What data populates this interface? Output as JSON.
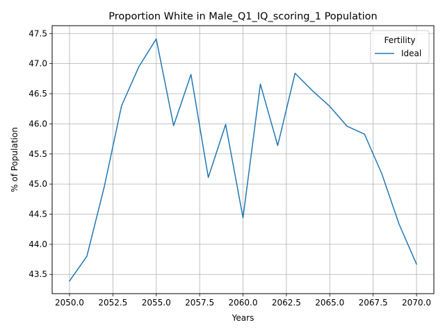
{
  "chart_data": {
    "type": "line",
    "title": "Proportion White in Male_Q1_IQ_scoring_1 Population",
    "xlabel": "Years",
    "ylabel": "% of Population",
    "xlim": [
      2049.0,
      2071.0
    ],
    "ylim": [
      43.18,
      47.63
    ],
    "x_ticks": [
      2050.0,
      2052.5,
      2055.0,
      2057.5,
      2060.0,
      2062.5,
      2065.0,
      2067.5,
      2070.0
    ],
    "x_tick_labels": [
      "2050.0",
      "2052.5",
      "2055.0",
      "2057.5",
      "2060.0",
      "2062.5",
      "2065.0",
      "2067.5",
      "2070.0"
    ],
    "y_ticks": [
      43.5,
      44.0,
      44.5,
      45.0,
      45.5,
      46.0,
      46.5,
      47.0,
      47.5
    ],
    "y_tick_labels": [
      "43.5",
      "44.0",
      "44.5",
      "45.0",
      "45.5",
      "46.0",
      "46.5",
      "47.0",
      "47.5"
    ],
    "grid": true,
    "legend": {
      "title": "Fertility",
      "placement": "top-right"
    },
    "series": [
      {
        "name": "Ideal",
        "color": "#1f77b4",
        "x": [
          2050,
          2051,
          2052,
          2053,
          2054,
          2055,
          2056,
          2057,
          2058,
          2059,
          2060,
          2061,
          2062,
          2063,
          2064,
          2065,
          2066,
          2067,
          2068,
          2069,
          2070
        ],
        "y": [
          43.39,
          43.8,
          44.95,
          46.3,
          46.95,
          47.41,
          45.97,
          46.82,
          45.11,
          45.99,
          44.44,
          46.66,
          45.64,
          46.84,
          46.55,
          46.29,
          45.96,
          45.83,
          45.17,
          44.33,
          43.67
        ]
      }
    ]
  }
}
